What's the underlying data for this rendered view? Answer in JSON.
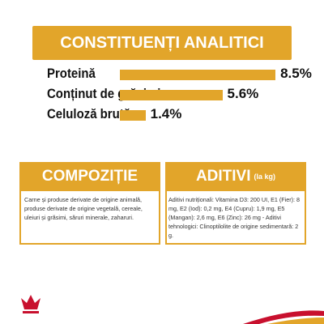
{
  "analytics": {
    "title": "CONSTITUENȚI ANALITICI",
    "items": [
      {
        "name": "Proteină",
        "value": 8.5,
        "value_label": "8.5%"
      },
      {
        "name": "Conținut de grăsimi",
        "value": 5.6,
        "value_label": "5.6%"
      },
      {
        "name": "Celuloză brută",
        "value": 1.4,
        "value_label": "1.4%"
      }
    ]
  },
  "composition": {
    "title": "COMPOZIȚIE",
    "text": "Carne și produse derivate de origine animală, produse derivate de origine vegetală, cereale, uleiuri și grăsimi, săruri minerale, zaharuri."
  },
  "additives": {
    "title": "ADITIVI",
    "unit": "(la kg)",
    "text": "Aditivi nutriționali: Vitamina D3: 200 UI, E1 (Fier): 8 mg, E2 (Iod): 0,2 mg, E4 (Cupru): 1,9 mg, E5 (Mangan): 2,6 mg, E6 (Zinc): 26 mg - Aditivi tehnologici: Clinoptilolite de origine sedimentară: 2 g."
  }
}
